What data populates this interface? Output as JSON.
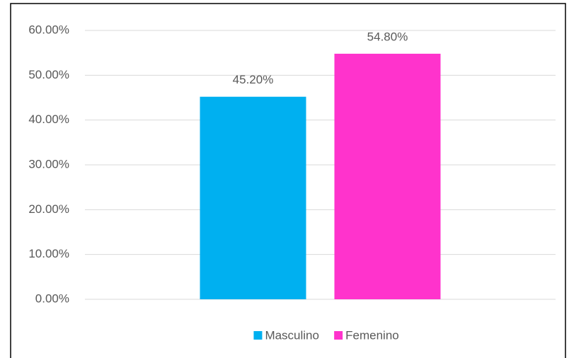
{
  "chart_data": {
    "type": "bar",
    "categories": [
      null
    ],
    "series": [
      {
        "name": "Masculino",
        "color": "#00b0f0",
        "values": [
          45.2
        ],
        "value_labels": [
          "45.20%"
        ]
      },
      {
        "name": "Femenino",
        "color": "#ff33cc",
        "values": [
          54.8
        ],
        "value_labels": [
          "54.80%"
        ]
      }
    ],
    "ylim": [
      0,
      60
    ],
    "yticks": [
      {
        "value": 0,
        "label": "0.00%"
      },
      {
        "value": 10,
        "label": "10.00%"
      },
      {
        "value": 20,
        "label": "20.00%"
      },
      {
        "value": 30,
        "label": "30.00%"
      },
      {
        "value": 40,
        "label": "40.00%"
      },
      {
        "value": 50,
        "label": "50.00%"
      },
      {
        "value": 60,
        "label": "60.00%"
      }
    ],
    "grid": true,
    "legend": "bottom"
  }
}
